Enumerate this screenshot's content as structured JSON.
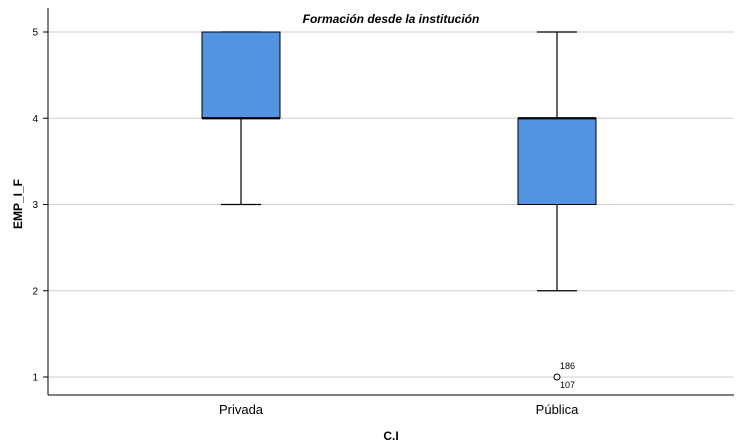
{
  "chart_data": {
    "type": "boxplot",
    "title": "Formación desde la institución",
    "xlabel": "C.I",
    "ylabel": "EMP_I_F",
    "ylim": [
      0.8,
      5.15
    ],
    "yticks": [
      1,
      2,
      3,
      4,
      5
    ],
    "grid": true,
    "box_color": "#5294e2",
    "categories": [
      "Privada",
      "Pública"
    ],
    "boxes": [
      {
        "category": "Privada",
        "min": 3,
        "q1": 4,
        "median": 4,
        "q3": 5,
        "max": 5,
        "outliers": []
      },
      {
        "category": "Pública",
        "min": 2,
        "q1": 3,
        "median": 4,
        "q3": 4,
        "max": 5,
        "outliers": [
          {
            "value": 1,
            "labels": [
              "186",
              "107"
            ]
          }
        ]
      }
    ]
  }
}
